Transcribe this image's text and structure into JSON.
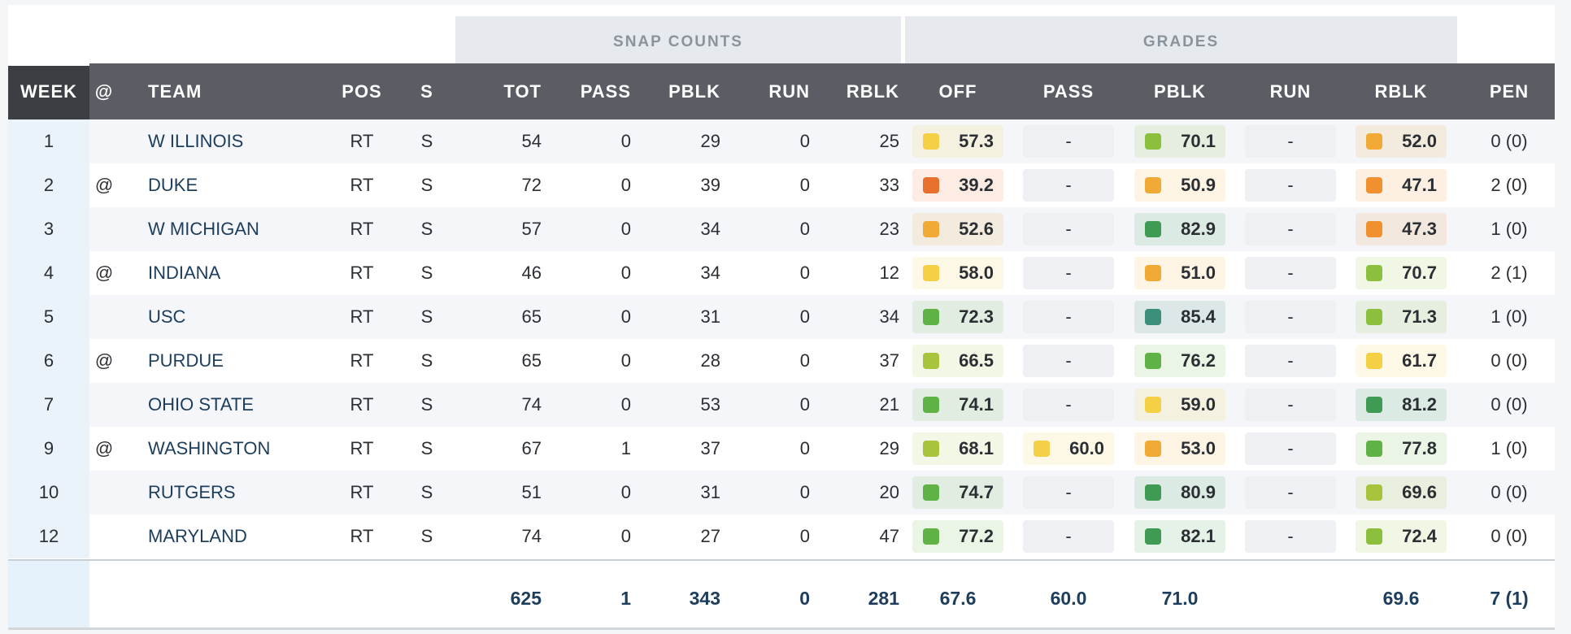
{
  "groups": {
    "snap_counts": "SNAP COUNTS",
    "grades": "GRADES"
  },
  "headers": [
    "WEEK",
    "@",
    "TEAM",
    "POS",
    "S",
    "TOT",
    "PASS",
    "PBLK",
    "RUN",
    "RBLK",
    "OFF",
    "PASS",
    "PBLK",
    "RUN",
    "RBLK",
    "PEN"
  ],
  "grade_colors": {
    "red-orange": "#e8702f",
    "orange": "#f0902f",
    "amber": "#f2aa36",
    "yellow": "#f5cf45",
    "yellow-green": "#a8c33c",
    "light-green": "#8cc03c",
    "green": "#5fb246",
    "dark-green": "#3f9a54",
    "teal": "#3c8f7a"
  },
  "rows": [
    {
      "week": "1",
      "at": "",
      "team": "W ILLINOIS",
      "pos": "RT",
      "s": "S",
      "tot": "54",
      "pass": "0",
      "pblk": "29",
      "run": "0",
      "rblk": "25",
      "grades": {
        "off": {
          "v": "57.3",
          "c": "yellow"
        },
        "pass": {
          "v": "-"
        },
        "pblk": {
          "v": "70.1",
          "c": "light-green"
        },
        "run": {
          "v": "-"
        },
        "rblk": {
          "v": "52.0",
          "c": "amber"
        }
      },
      "pen": "0 (0)"
    },
    {
      "week": "2",
      "at": "@",
      "team": "DUKE",
      "pos": "RT",
      "s": "S",
      "tot": "72",
      "pass": "0",
      "pblk": "39",
      "run": "0",
      "rblk": "33",
      "grades": {
        "off": {
          "v": "39.2",
          "c": "red-orange"
        },
        "pass": {
          "v": "-"
        },
        "pblk": {
          "v": "50.9",
          "c": "amber"
        },
        "run": {
          "v": "-"
        },
        "rblk": {
          "v": "47.1",
          "c": "orange"
        }
      },
      "pen": "2 (0)"
    },
    {
      "week": "3",
      "at": "",
      "team": "W MICHIGAN",
      "pos": "RT",
      "s": "S",
      "tot": "57",
      "pass": "0",
      "pblk": "34",
      "run": "0",
      "rblk": "23",
      "grades": {
        "off": {
          "v": "52.6",
          "c": "amber"
        },
        "pass": {
          "v": "-"
        },
        "pblk": {
          "v": "82.9",
          "c": "dark-green"
        },
        "run": {
          "v": "-"
        },
        "rblk": {
          "v": "47.3",
          "c": "orange"
        }
      },
      "pen": "1 (0)"
    },
    {
      "week": "4",
      "at": "@",
      "team": "INDIANA",
      "pos": "RT",
      "s": "S",
      "tot": "46",
      "pass": "0",
      "pblk": "34",
      "run": "0",
      "rblk": "12",
      "grades": {
        "off": {
          "v": "58.0",
          "c": "yellow"
        },
        "pass": {
          "v": "-"
        },
        "pblk": {
          "v": "51.0",
          "c": "amber"
        },
        "run": {
          "v": "-"
        },
        "rblk": {
          "v": "70.7",
          "c": "light-green"
        }
      },
      "pen": "2 (1)"
    },
    {
      "week": "5",
      "at": "",
      "team": "USC",
      "pos": "RT",
      "s": "S",
      "tot": "65",
      "pass": "0",
      "pblk": "31",
      "run": "0",
      "rblk": "34",
      "grades": {
        "off": {
          "v": "72.3",
          "c": "green"
        },
        "pass": {
          "v": "-"
        },
        "pblk": {
          "v": "85.4",
          "c": "teal"
        },
        "run": {
          "v": "-"
        },
        "rblk": {
          "v": "71.3",
          "c": "light-green"
        }
      },
      "pen": "1 (0)"
    },
    {
      "week": "6",
      "at": "@",
      "team": "PURDUE",
      "pos": "RT",
      "s": "S",
      "tot": "65",
      "pass": "0",
      "pblk": "28",
      "run": "0",
      "rblk": "37",
      "grades": {
        "off": {
          "v": "66.5",
          "c": "yellow-green"
        },
        "pass": {
          "v": "-"
        },
        "pblk": {
          "v": "76.2",
          "c": "green"
        },
        "run": {
          "v": "-"
        },
        "rblk": {
          "v": "61.7",
          "c": "yellow"
        }
      },
      "pen": "0 (0)"
    },
    {
      "week": "7",
      "at": "",
      "team": "OHIO STATE",
      "pos": "RT",
      "s": "S",
      "tot": "74",
      "pass": "0",
      "pblk": "53",
      "run": "0",
      "rblk": "21",
      "grades": {
        "off": {
          "v": "74.1",
          "c": "green"
        },
        "pass": {
          "v": "-"
        },
        "pblk": {
          "v": "59.0",
          "c": "yellow"
        },
        "run": {
          "v": "-"
        },
        "rblk": {
          "v": "81.2",
          "c": "dark-green"
        }
      },
      "pen": "0 (0)"
    },
    {
      "week": "9",
      "at": "@",
      "team": "WASHINGTON",
      "pos": "RT",
      "s": "S",
      "tot": "67",
      "pass": "1",
      "pblk": "37",
      "run": "0",
      "rblk": "29",
      "grades": {
        "off": {
          "v": "68.1",
          "c": "yellow-green"
        },
        "pass": {
          "v": "60.0",
          "c": "yellow"
        },
        "pblk": {
          "v": "53.0",
          "c": "amber"
        },
        "run": {
          "v": "-"
        },
        "rblk": {
          "v": "77.8",
          "c": "green"
        }
      },
      "pen": "1 (0)"
    },
    {
      "week": "10",
      "at": "",
      "team": "RUTGERS",
      "pos": "RT",
      "s": "S",
      "tot": "51",
      "pass": "0",
      "pblk": "31",
      "run": "0",
      "rblk": "20",
      "grades": {
        "off": {
          "v": "74.7",
          "c": "green"
        },
        "pass": {
          "v": "-"
        },
        "pblk": {
          "v": "80.9",
          "c": "dark-green"
        },
        "run": {
          "v": "-"
        },
        "rblk": {
          "v": "69.6",
          "c": "yellow-green"
        }
      },
      "pen": "0 (0)"
    },
    {
      "week": "12",
      "at": "",
      "team": "MARYLAND",
      "pos": "RT",
      "s": "S",
      "tot": "74",
      "pass": "0",
      "pblk": "27",
      "run": "0",
      "rblk": "47",
      "grades": {
        "off": {
          "v": "77.2",
          "c": "green"
        },
        "pass": {
          "v": "-"
        },
        "pblk": {
          "v": "82.1",
          "c": "dark-green"
        },
        "run": {
          "v": "-"
        },
        "rblk": {
          "v": "72.4",
          "c": "light-green"
        }
      },
      "pen": "0 (0)"
    }
  ],
  "totals": {
    "tot": "625",
    "pass": "1",
    "pblk": "343",
    "run": "0",
    "rblk": "281",
    "off": "67.6",
    "gpass": "60.0",
    "gpblk": "71.0",
    "grun": "",
    "grblk": "69.6",
    "pen": "7 (1)"
  }
}
